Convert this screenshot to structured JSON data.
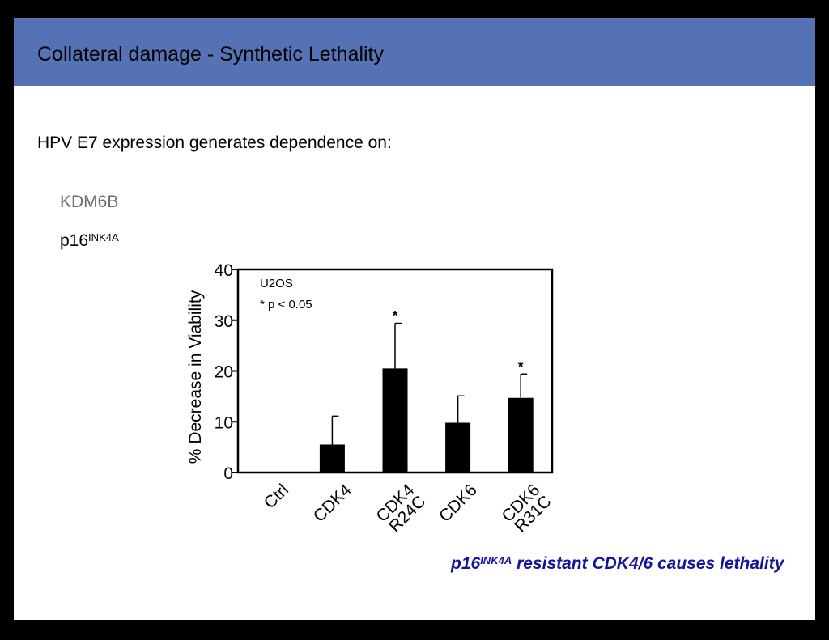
{
  "slide": {
    "title": "Collateral damage - Synthetic Lethality",
    "subtitle": "HPV E7 expression generates dependence on:",
    "items": [
      "KDM6B",
      "p16"
    ],
    "item2_superscript": "INK4A",
    "caption_main": "p16",
    "caption_superscript": "INK4A",
    "caption_rest": " resistant CDK4/6 causes lethality",
    "caption_color": "#14149c",
    "header_color": "#5573b4"
  },
  "chart_data": {
    "type": "bar",
    "categories": [
      [
        "Ctrl"
      ],
      [
        "CDK4"
      ],
      [
        "CDK4",
        "R24C"
      ],
      [
        "CDK6"
      ],
      [
        "CDK6",
        "R31C"
      ]
    ],
    "values": [
      0,
      5.5,
      20.5,
      9.8,
      14.7
    ],
    "error_upper": [
      0,
      11.1,
      29.4,
      15.1,
      19.4
    ],
    "significance": [
      "",
      "",
      "*",
      "",
      "*"
    ],
    "ylabel": "% Decrease in Viability",
    "ylim": [
      0,
      40
    ],
    "yticks": [
      0,
      10,
      20,
      30,
      40
    ],
    "annotations": [
      "U2OS",
      "* p < 0.05"
    ],
    "bar_color": "#000000",
    "grid": false
  }
}
